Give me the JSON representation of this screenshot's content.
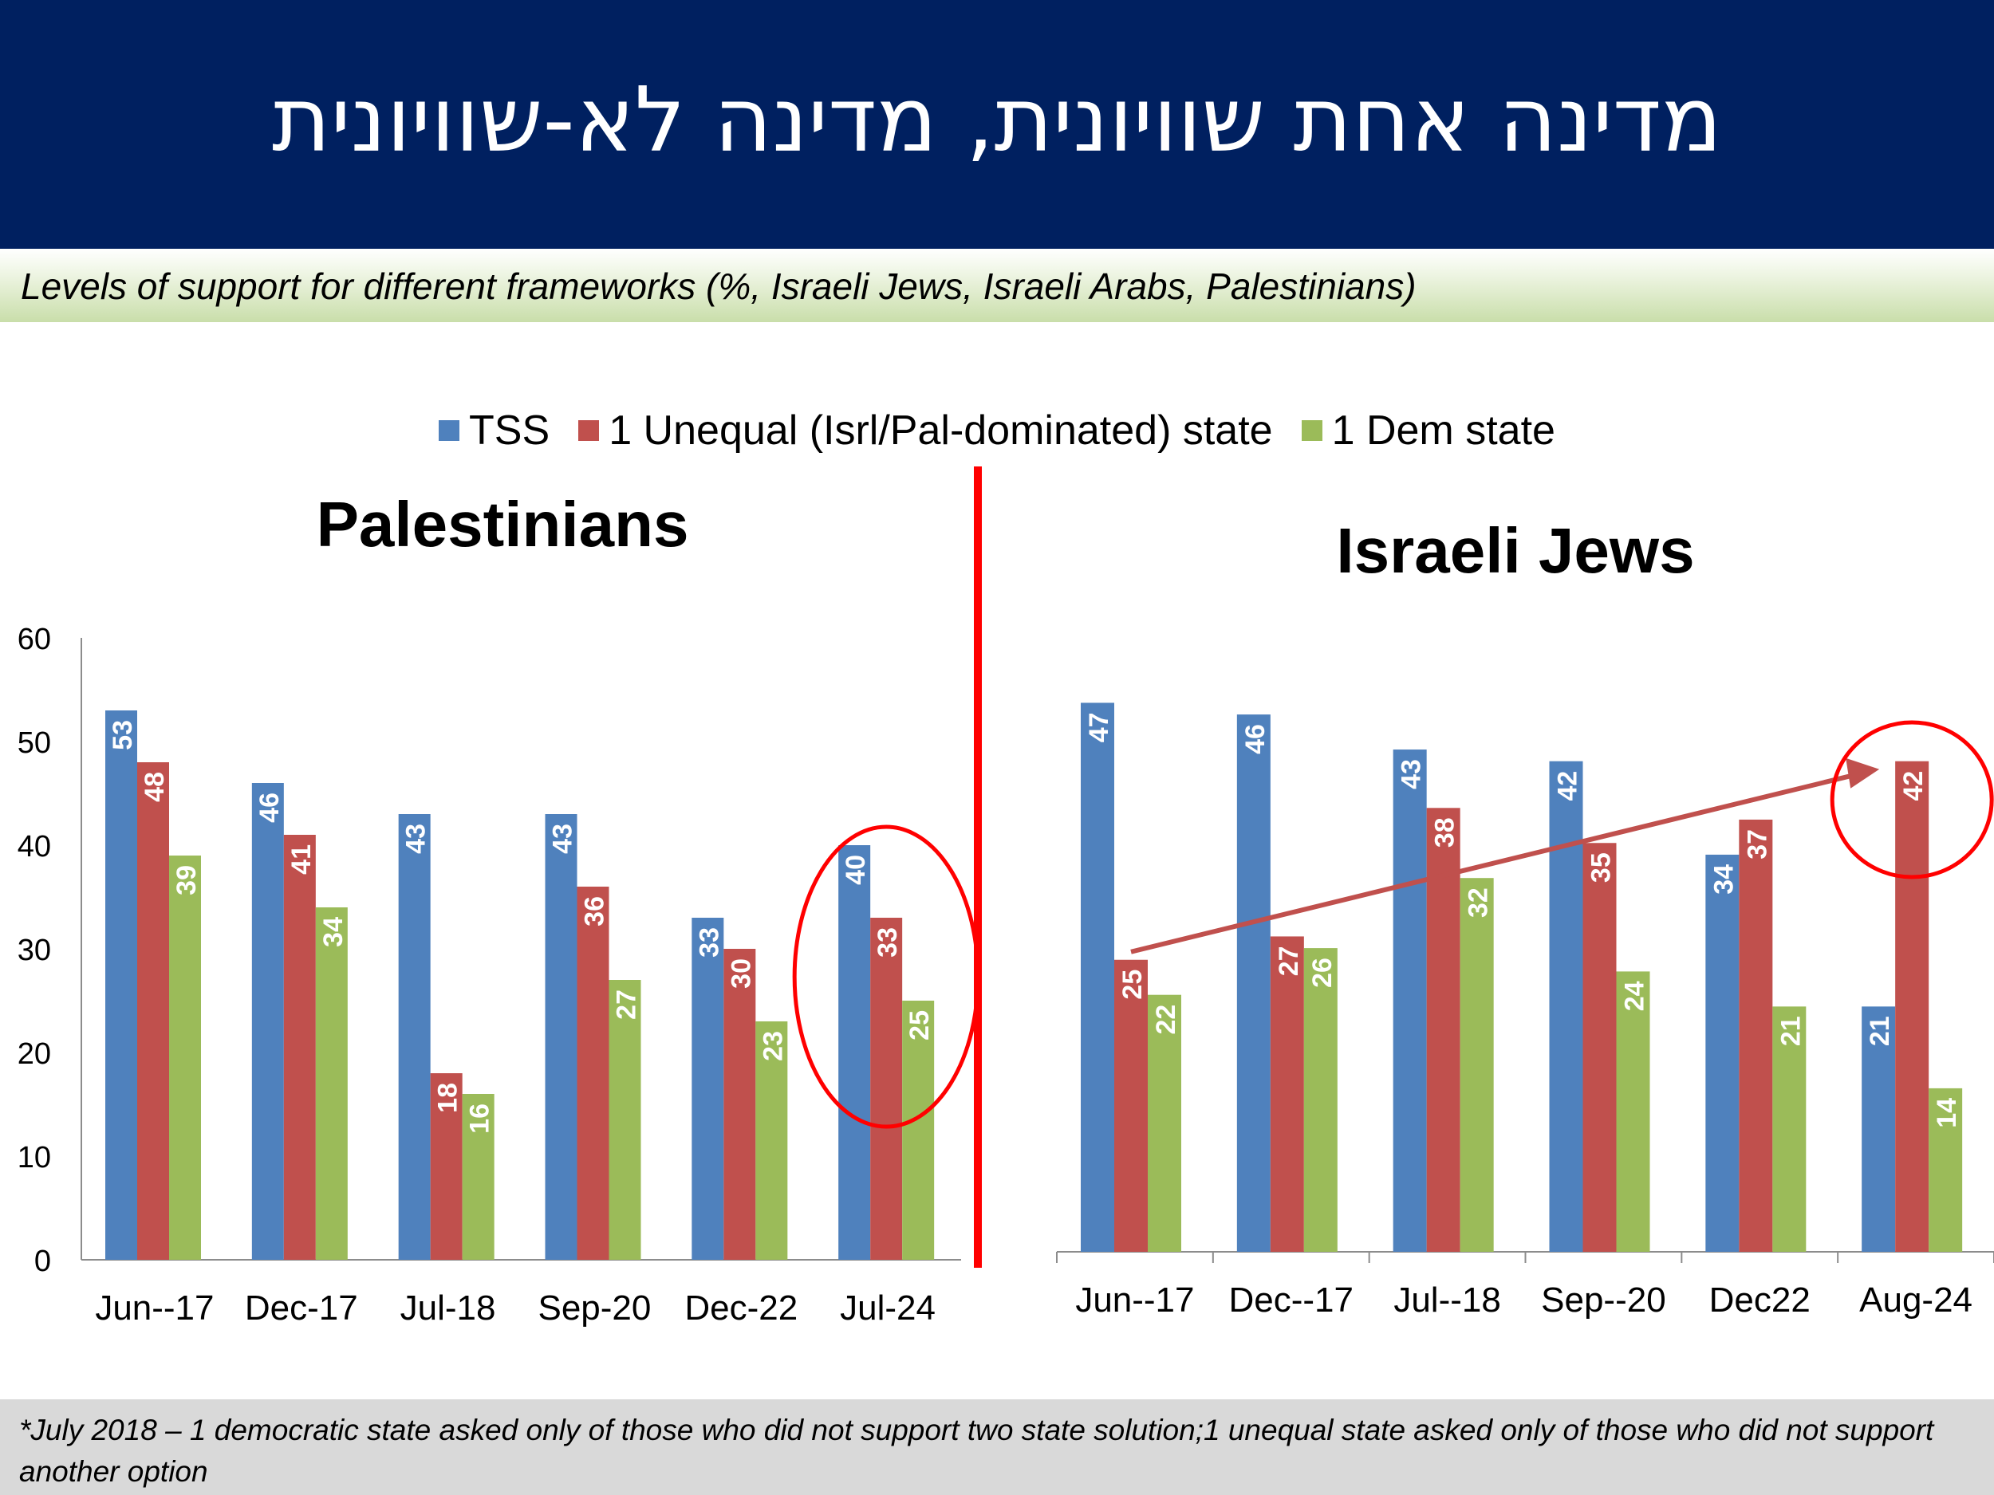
{
  "header": {
    "title": "מדינה אחת שוויונית, מדינה לא-שוויונית"
  },
  "subtitle": "Levels of support for different frameworks (%, Israeli Jews, Israeli Arabs, Palestinians)",
  "legend": [
    {
      "label": "TSS",
      "color": "#4F81BD"
    },
    {
      "label": "1 Unequal (Isrl/Pal-dominated) state",
      "color": "#C0504D"
    },
    {
      "label": "1 Dem state",
      "color": "#9BBB59"
    }
  ],
  "footnote": "*July 2018 – 1 democratic state asked only of those who did not support two state solution;1 unequal state asked only of those who did not support another option",
  "chart_data": [
    {
      "type": "bar",
      "title": "Palestinians",
      "categories": [
        "Jun--17",
        "Dec-17",
        "Jul-18",
        "Sep-20",
        "Dec-22",
        "Jul-24"
      ],
      "ylim": [
        0,
        60
      ],
      "yticks": [
        "0",
        "10",
        "20",
        "30",
        "40",
        "50",
        "60"
      ],
      "series": [
        {
          "name": "TSS",
          "color": "#4F81BD",
          "values": [
            53,
            46,
            43,
            43,
            33,
            40
          ]
        },
        {
          "name": "1 Unequal (Isrl/Pal-dominated) state",
          "color": "#C0504D",
          "values": [
            48,
            41,
            18,
            36,
            30,
            33
          ]
        },
        {
          "name": "1 Dem state",
          "color": "#9BBB59",
          "values": [
            39,
            34,
            16,
            27,
            23,
            25
          ]
        }
      ],
      "annotation": "red circle around Jul-24 group"
    },
    {
      "type": "bar",
      "title": "Israeli Jews",
      "categories": [
        "Jun--17",
        "Dec--17",
        "Jul--18",
        "Sep--20",
        "Dec22",
        "Aug-24"
      ],
      "series": [
        {
          "name": "TSS",
          "color": "#4F81BD",
          "values": [
            47,
            46,
            43,
            42,
            34,
            21
          ]
        },
        {
          "name": "1 Unequal (Isrl/Pal-dominated) state",
          "color": "#C0504D",
          "values": [
            25,
            27,
            38,
            35,
            37,
            42
          ]
        },
        {
          "name": "1 Dem state",
          "color": "#9BBB59",
          "values": [
            22,
            26,
            32,
            24,
            21,
            14
          ]
        }
      ],
      "annotation": "arrow from Jun--17 unequal-state bar toward Aug-24; red circle around Aug-24 value 42"
    }
  ]
}
